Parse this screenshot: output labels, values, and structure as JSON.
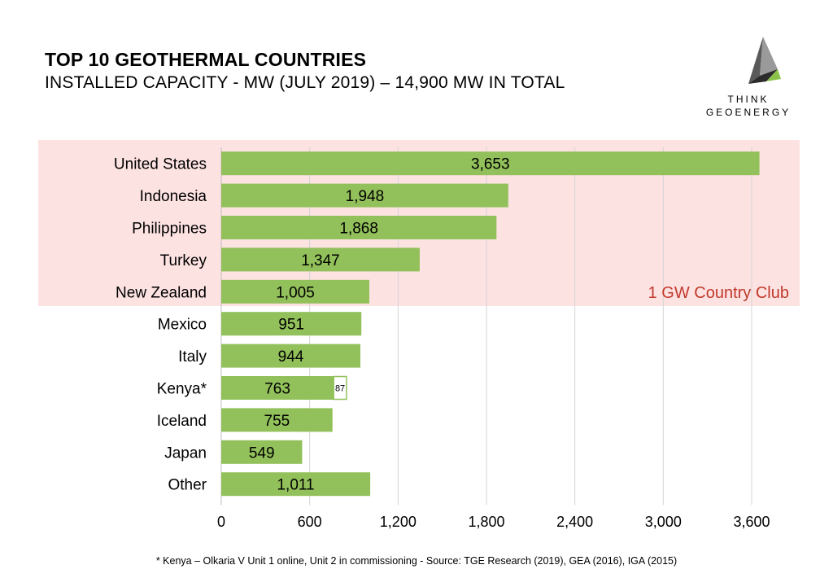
{
  "header": {
    "title": "TOP 10 GEOTHERMAL COUNTRIES",
    "subtitle": "INSTALLED CAPACITY - MW (JULY 2019) – 14,900 MW IN TOTAL"
  },
  "logo": {
    "line1": "THINK",
    "line2": "GEOENERGY"
  },
  "highlight": {
    "label": "1 GW Country Club",
    "categories_covered": 5,
    "background_color": "#fde2e2",
    "label_color": "#c0392b"
  },
  "chart_data": {
    "type": "bar",
    "orientation": "horizontal",
    "categories": [
      "United States",
      "Indonesia",
      "Philippines",
      "Turkey",
      "New Zealand",
      "Mexico",
      "Italy",
      "Kenya*",
      "Iceland",
      "Japan",
      "Other"
    ],
    "values": [
      3653,
      1948,
      1868,
      1347,
      1005,
      951,
      944,
      763,
      755,
      549,
      1011
    ],
    "value_labels": [
      "3,653",
      "1,948",
      "1,868",
      "1,347",
      "1,005",
      "951",
      "944",
      "763",
      "755",
      "549",
      "1,011"
    ],
    "extra_segment": {
      "category": "Kenya*",
      "value": 87,
      "label": "87"
    },
    "xlim": [
      0,
      3600
    ],
    "xticks": [
      0,
      600,
      1200,
      1800,
      2400,
      3000,
      3600
    ],
    "xtick_labels": [
      "0",
      "600",
      "1,200",
      "1,800",
      "2,400",
      "3,000",
      "3,600"
    ],
    "grid": "vertical",
    "bar_color": "#92c05a",
    "title": "",
    "xlabel": "",
    "ylabel": ""
  },
  "footnote": "* Kenya – Olkaria V Unit 1 online, Unit 2 in commissioning -  Source: TGE Research (2019), GEA (2016), IGA (2015)"
}
